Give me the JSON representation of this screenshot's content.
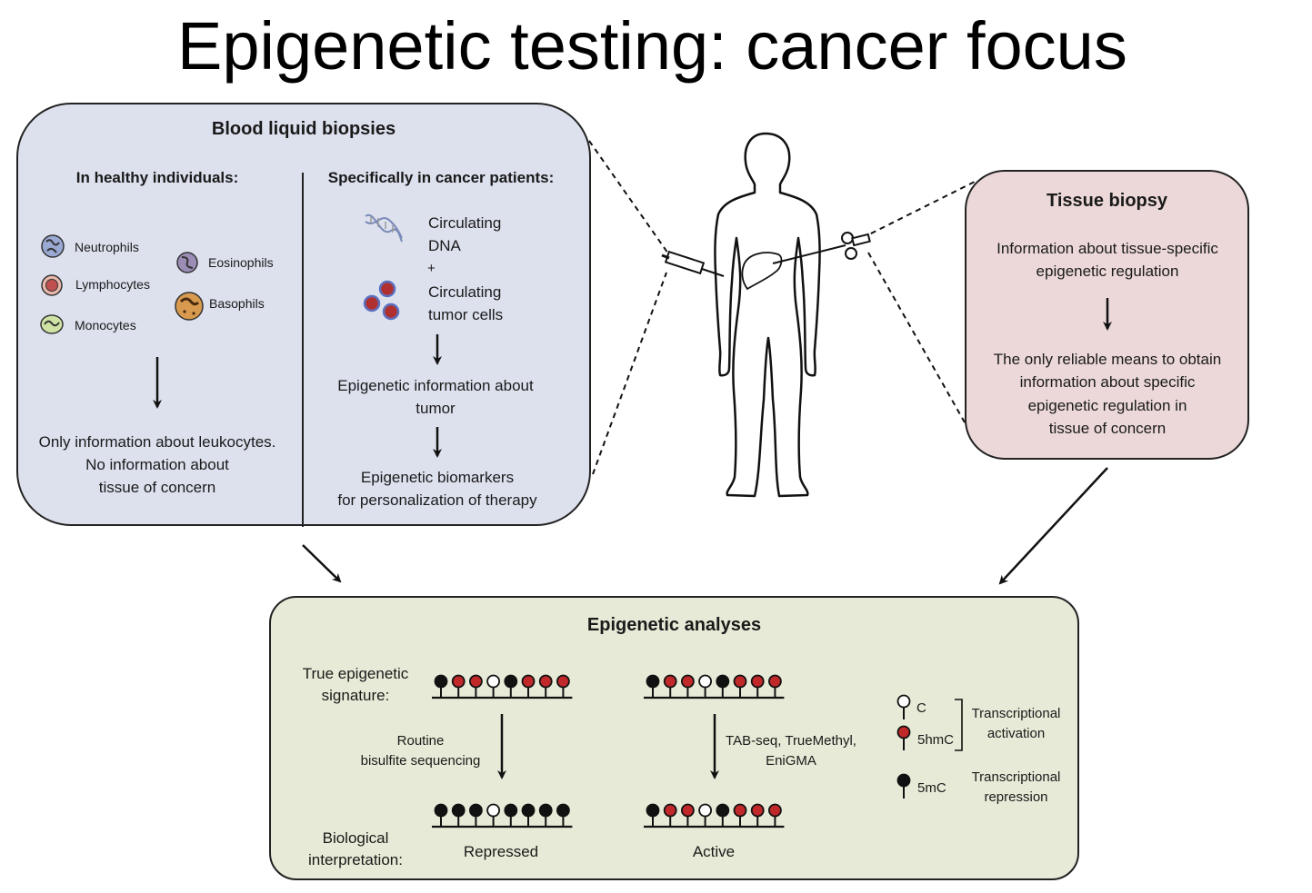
{
  "title": "Epigenetic testing: cancer focus",
  "blood": {
    "heading": "Blood liquid biopsies",
    "healthy": {
      "heading": "In healthy individuals:",
      "cells": [
        "Neutrophils",
        "Lymphocytes",
        "Monocytes",
        "Eosinophils",
        "Basophils"
      ],
      "conclusion": [
        "Only information about leukocytes.",
        "No information about",
        "tissue of concern"
      ]
    },
    "cancer": {
      "heading": "Specifically in cancer patients:",
      "circ_dna": [
        "Circulating",
        "DNA"
      ],
      "plus": "+",
      "circ_cells": [
        "Circulating",
        "tumor cells"
      ],
      "info": [
        "Epigenetic information about",
        "tumor"
      ],
      "biomarkers": [
        "Epigenetic biomarkers",
        "for personalization of therapy"
      ]
    }
  },
  "tissue": {
    "heading": "Tissue biopsy",
    "info": [
      "Information about tissue-specific",
      "epigenetic regulation"
    ],
    "means": [
      "The only reliable means to obtain",
      "information about specific",
      "epigenetic regulation in",
      "tissue of concern"
    ]
  },
  "analyses": {
    "heading": "Epigenetic analyses",
    "true_sig": [
      "True epigenetic",
      "signature:"
    ],
    "routine": [
      "Routine",
      "bisulfite sequencing"
    ],
    "tab": [
      "TAB-seq, TrueMethyl,",
      "EniGMA"
    ],
    "bio": [
      "Biological",
      "interpretation:"
    ],
    "repressed": "Repressed",
    "active": "Active",
    "legend": {
      "c": "C",
      "hmc": "5hmC",
      "mc": "5mC",
      "activation": [
        "Transcriptional",
        "activation"
      ],
      "repression": [
        "Transcriptional",
        "repression"
      ]
    },
    "signatures": {
      "true_left": [
        "5mC",
        "5hmC",
        "5hmC",
        "C",
        "5mC",
        "5hmC",
        "5hmC",
        "5hmC"
      ],
      "true_right": [
        "5mC",
        "5hmC",
        "5hmC",
        "C",
        "5mC",
        "5hmC",
        "5hmC",
        "5hmC"
      ],
      "bisulfite_left": [
        "5mC",
        "5mC",
        "5mC",
        "C",
        "5mC",
        "5mC",
        "5mC",
        "5mC"
      ],
      "tab_right": [
        "5mC",
        "5hmC",
        "5hmC",
        "C",
        "5mC",
        "5hmC",
        "5hmC",
        "5hmC"
      ]
    }
  },
  "colors": {
    "blood_bg": "#dde1ee",
    "tissue_bg": "#ecd8d8",
    "analysis_bg": "#e7ead6",
    "hmc_red": "#c0282a",
    "mc_black": "#111111"
  }
}
